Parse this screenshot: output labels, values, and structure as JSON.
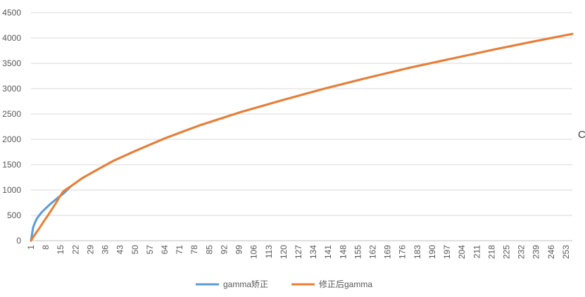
{
  "chart_data": {
    "type": "line",
    "title": "",
    "xlabel": "",
    "ylabel": "",
    "x_range": [
      1,
      256
    ],
    "x_ticks": [
      1,
      8,
      15,
      22,
      29,
      36,
      43,
      50,
      57,
      64,
      71,
      78,
      85,
      92,
      99,
      106,
      113,
      120,
      127,
      134,
      141,
      148,
      155,
      162,
      169,
      176,
      183,
      190,
      197,
      204,
      211,
      218,
      225,
      232,
      239,
      246,
      253
    ],
    "ylim": [
      0,
      4500
    ],
    "y_ticks": [
      0,
      500,
      1000,
      1500,
      2000,
      2500,
      3000,
      3500,
      4000,
      4500
    ],
    "grid": "horizontal",
    "legend_position": "bottom",
    "series": [
      {
        "name": "gamma矫正",
        "color": "#5B9BD5",
        "x": [
          1,
          2,
          3,
          4,
          6,
          8,
          10,
          12,
          14,
          16,
          17,
          20,
          25,
          30,
          40,
          50,
          64,
          80,
          100,
          120,
          140,
          160,
          180,
          200,
          220,
          240,
          256
        ],
        "values": [
          0,
          260,
          370,
          450,
          560,
          640,
          720,
          790,
          860,
          920,
          960,
          1080,
          1230,
          1350,
          1580,
          1770,
          2020,
          2270,
          2540,
          2780,
          3010,
          3220,
          3420,
          3600,
          3780,
          3950,
          4080
        ]
      },
      {
        "name": "修正后gamma",
        "color": "#ED7D31",
        "x": [
          1,
          3,
          5,
          7,
          9,
          11,
          13,
          15,
          16,
          17,
          20,
          25,
          30,
          40,
          50,
          64,
          80,
          100,
          120,
          140,
          160,
          180,
          200,
          220,
          240,
          256
        ],
        "values": [
          0,
          130,
          250,
          380,
          500,
          630,
          760,
          900,
          960,
          1000,
          1080,
          1230,
          1350,
          1580,
          1770,
          2020,
          2270,
          2540,
          2780,
          3010,
          3220,
          3420,
          3600,
          3780,
          3950,
          4080
        ]
      }
    ],
    "edge_glyph": "C"
  }
}
